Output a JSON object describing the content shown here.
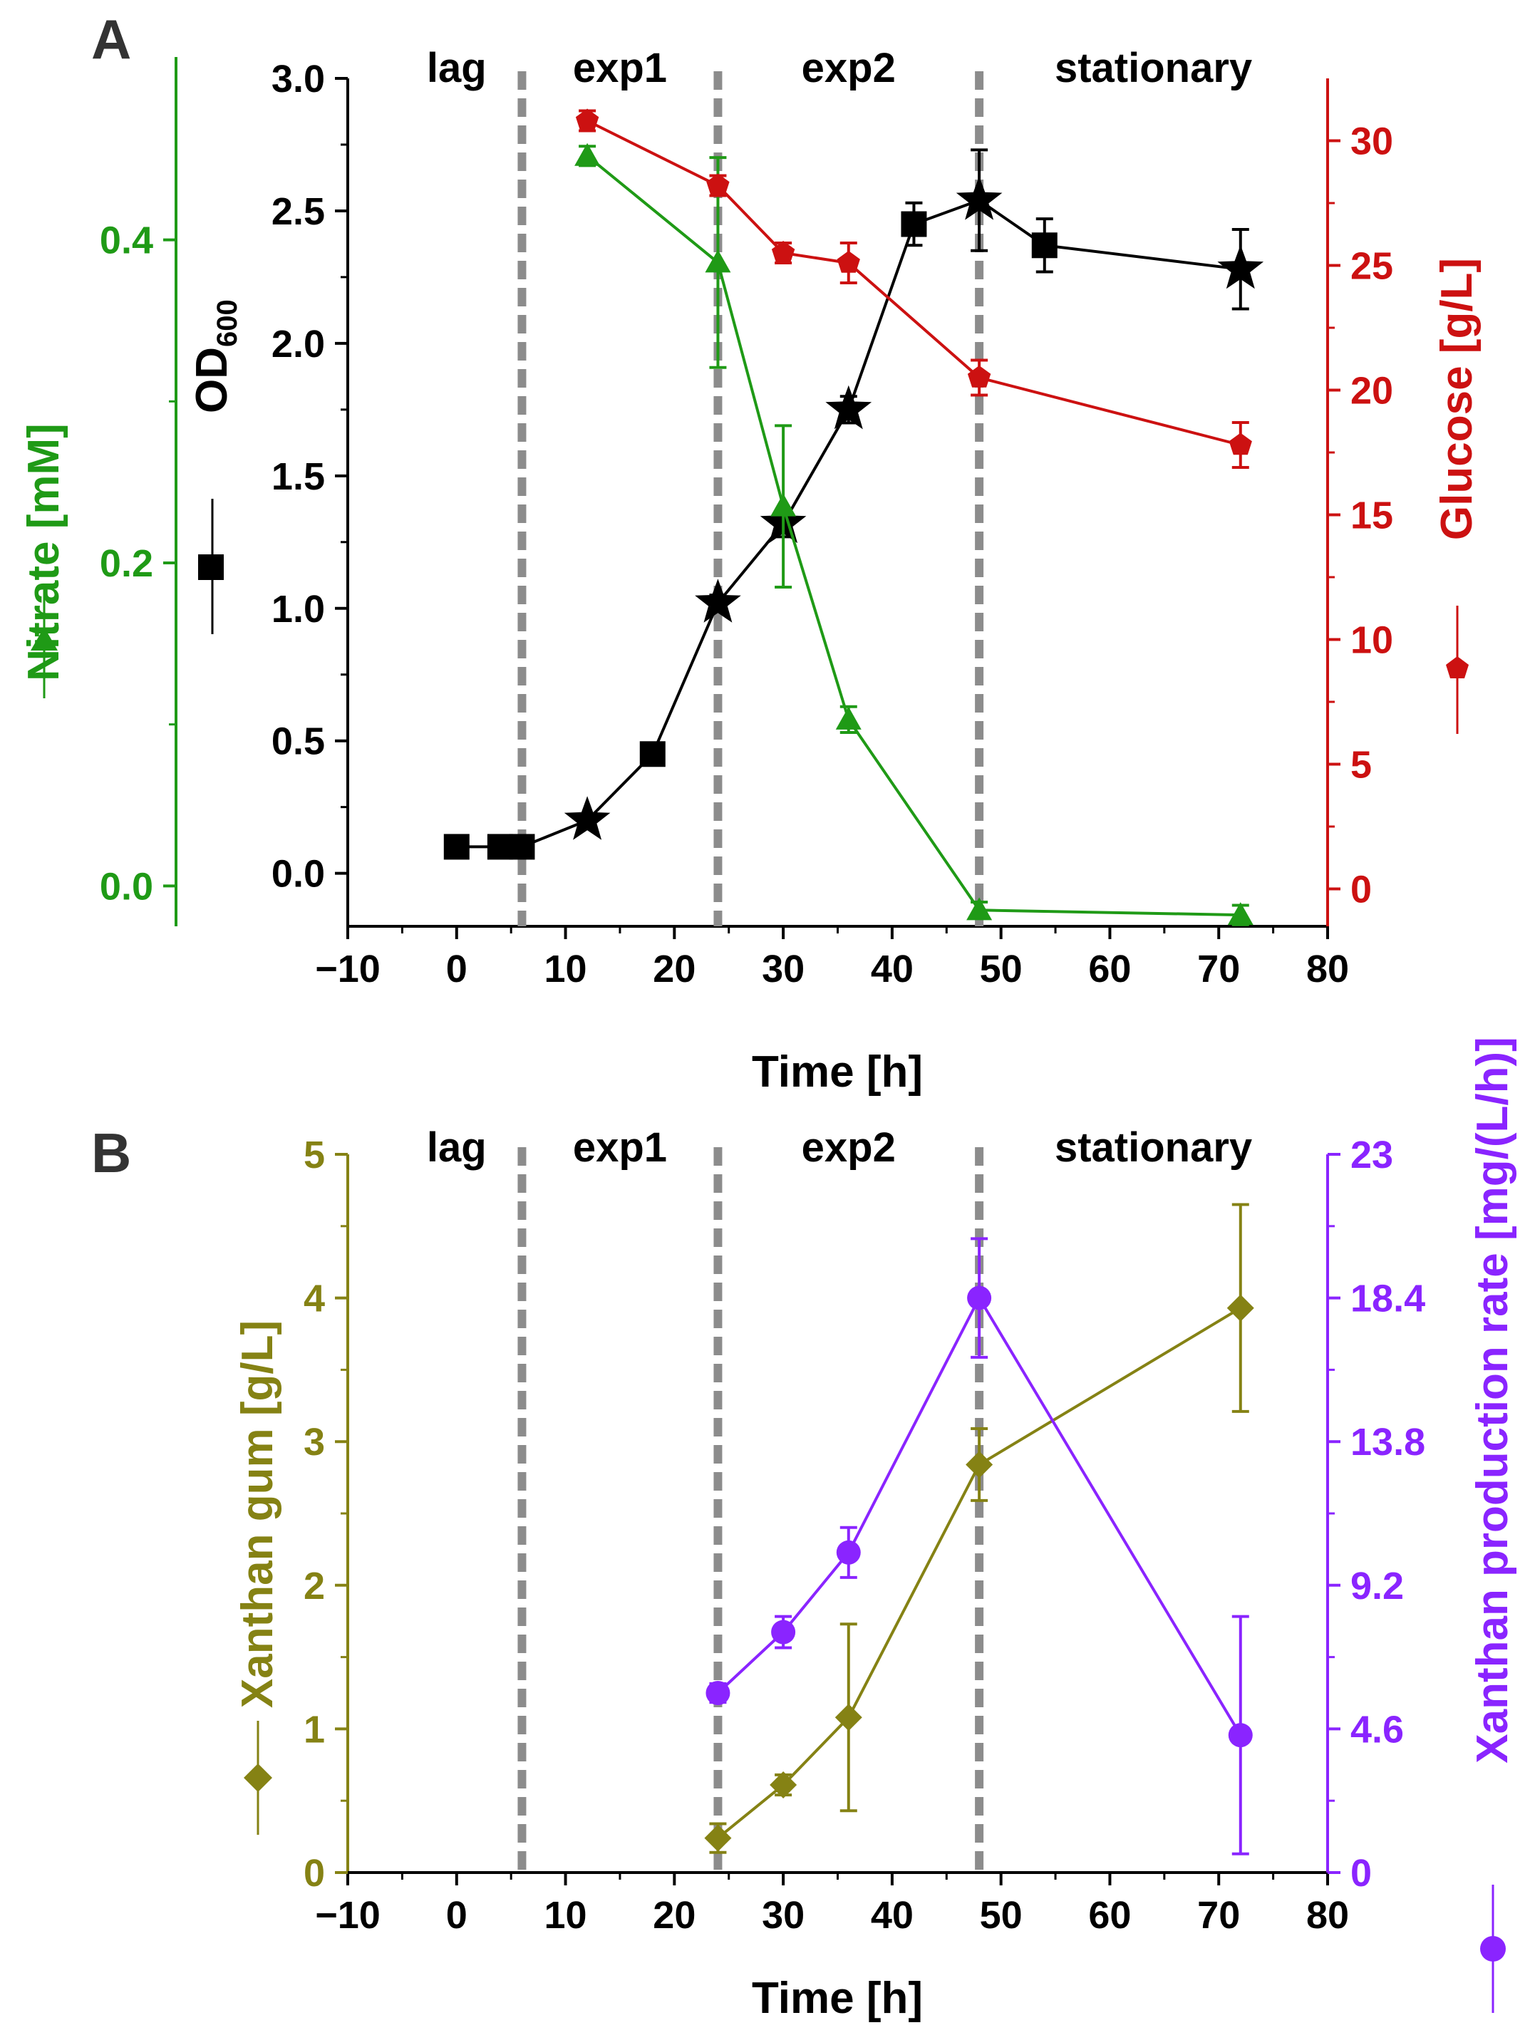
{
  "figure": {
    "colors": {
      "black": "#000000",
      "green": "#1f9a16",
      "red": "#cc1111",
      "olive": "#858214",
      "purple": "#8a24ff",
      "phase_line": "#8c8c8c"
    }
  },
  "chart_data": [
    {
      "panel": "A",
      "type": "line",
      "xlabel": "Time [h]",
      "xlim": [
        -10,
        80
      ],
      "x_ticks": [
        "−10",
        "0",
        "10",
        "20",
        "30",
        "40",
        "50",
        "60",
        "70",
        "80"
      ],
      "phase_lines_x": [
        6,
        24,
        48
      ],
      "phases": [
        {
          "label": "lag",
          "x": 0
        },
        {
          "label": "exp1",
          "x": 15
        },
        {
          "label": "exp2",
          "x": 36
        },
        {
          "label": "stationary",
          "x": 64
        }
      ],
      "axes": {
        "od": {
          "label": "OD",
          "label_sub": "600",
          "ylim": [
            -0.2,
            3.0
          ],
          "ticks": [
            "0.0",
            "0.5",
            "1.0",
            "1.5",
            "2.0",
            "2.5",
            "3.0"
          ],
          "color": "#000000"
        },
        "nitrate": {
          "label": "Nitrate  [mM]",
          "ylim": [
            -0.025,
            0.5
          ],
          "ticks": [
            "0.0",
            "0.2",
            "0.4"
          ],
          "color": "#1f9a16"
        },
        "glucose": {
          "label": "Glucose [g/L]",
          "ylim": [
            -1.5,
            32.5
          ],
          "ticks": [
            "0",
            "5",
            "10",
            "15",
            "20",
            "25",
            "30"
          ],
          "color": "#cc1111"
        }
      },
      "series": [
        {
          "axis": "od",
          "color": "#000000",
          "points": [
            {
              "x": 0,
              "y": 0.1,
              "marker": "square"
            },
            {
              "x": 4,
              "y": 0.1,
              "marker": "square"
            },
            {
              "x": 6,
              "y": 0.1,
              "marker": "square"
            },
            {
              "x": 12,
              "y": 0.2,
              "err": 0.02,
              "marker": "star"
            },
            {
              "x": 18,
              "y": 0.45,
              "err": 0.02,
              "marker": "square"
            },
            {
              "x": 24,
              "y": 1.02,
              "err": 0.03,
              "marker": "star"
            },
            {
              "x": 30,
              "y": 1.32,
              "err": 0.05,
              "marker": "star"
            },
            {
              "x": 36,
              "y": 1.75,
              "err": 0.05,
              "marker": "star"
            },
            {
              "x": 42,
              "y": 2.45,
              "err": 0.08,
              "marker": "square"
            },
            {
              "x": 48,
              "y": 2.54,
              "err": 0.19,
              "marker": "star"
            },
            {
              "x": 54,
              "y": 2.37,
              "err": 0.1,
              "marker": "square"
            },
            {
              "x": 72,
              "y": 2.28,
              "err": 0.15,
              "marker": "star"
            }
          ]
        },
        {
          "axis": "nitrate",
          "color": "#1f9a16",
          "points": [
            {
              "x": 12,
              "y": 0.452,
              "err": 0.006
            },
            {
              "x": 24,
              "y": 0.386,
              "err": 0.065
            },
            {
              "x": 30,
              "y": 0.235,
              "err": 0.05
            },
            {
              "x": 36,
              "y": 0.103,
              "err": 0.008
            },
            {
              "x": 48,
              "y": -0.015,
              "err": 0.005
            },
            {
              "x": 72,
              "y": -0.018,
              "err": 0.006
            }
          ]
        },
        {
          "axis": "glucose",
          "color": "#cc1111",
          "points": [
            {
              "x": 12,
              "y": 30.8,
              "err": 0.4
            },
            {
              "x": 24,
              "y": 28.2,
              "err": 0.4
            },
            {
              "x": 30,
              "y": 25.5,
              "err": 0.4
            },
            {
              "x": 36,
              "y": 25.1,
              "err": 0.8
            },
            {
              "x": 48,
              "y": 20.5,
              "err": 0.7
            },
            {
              "x": 72,
              "y": 17.8,
              "err": 0.9
            }
          ]
        }
      ]
    },
    {
      "panel": "B",
      "type": "line",
      "xlabel": "Time [h]",
      "xlim": [
        -10,
        80
      ],
      "x_ticks": [
        "−10",
        "0",
        "10",
        "20",
        "30",
        "40",
        "50",
        "60",
        "70",
        "80"
      ],
      "phase_lines_x": [
        6,
        24,
        48
      ],
      "phases": [
        {
          "label": "lag",
          "x": 0
        },
        {
          "label": "exp1",
          "x": 15
        },
        {
          "label": "exp2",
          "x": 36
        },
        {
          "label": "stationary",
          "x": 64
        }
      ],
      "axes": {
        "xanthan": {
          "label": "Xanthan gum [g/L]",
          "ylim": [
            0,
            5
          ],
          "ticks": [
            "0",
            "1",
            "2",
            "3",
            "4",
            "5"
          ],
          "color": "#858214"
        },
        "rate": {
          "label": "Xanthan production rate [mg/(L/h)]",
          "ylim": [
            0,
            23
          ],
          "ticks": [
            "0",
            "4.6",
            "9.2",
            "13.8",
            "18.4",
            "23"
          ],
          "color": "#8a24ff"
        }
      },
      "series": [
        {
          "axis": "xanthan",
          "color": "#858214",
          "points": [
            {
              "x": 24,
              "y": 0.24,
              "err": 0.1
            },
            {
              "x": 30,
              "y": 0.61,
              "err": 0.07
            },
            {
              "x": 36,
              "y": 1.08,
              "err": 0.65
            },
            {
              "x": 48,
              "y": 2.84,
              "err": 0.25
            },
            {
              "x": 72,
              "y": 3.93,
              "err": 0.72
            }
          ]
        },
        {
          "axis": "rate",
          "color": "#8a24ff",
          "points": [
            {
              "x": 24,
              "y": 5.75,
              "err": 0.3
            },
            {
              "x": 30,
              "y": 7.7,
              "err": 0.5
            },
            {
              "x": 36,
              "y": 10.25,
              "err": 0.8
            },
            {
              "x": 48,
              "y": 18.4,
              "err": 1.9
            },
            {
              "x": 72,
              "y": 4.4,
              "err": 3.8
            }
          ]
        }
      ]
    }
  ]
}
